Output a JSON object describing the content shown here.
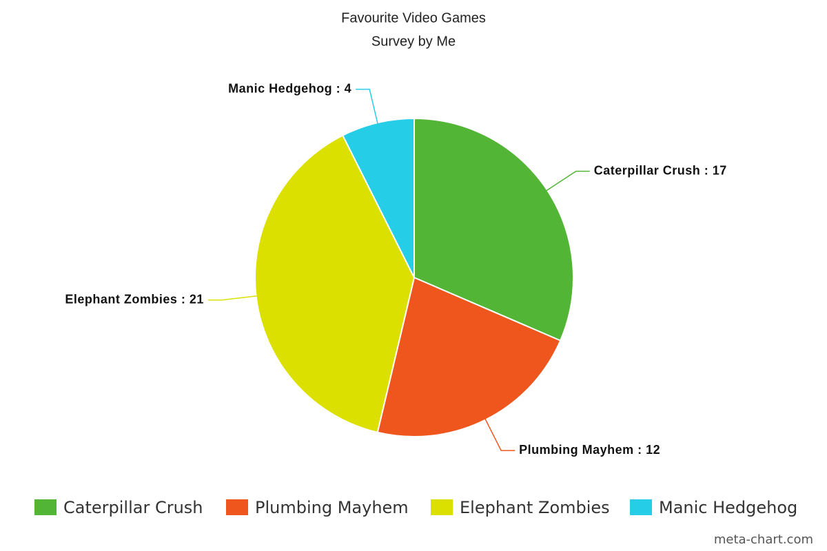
{
  "chart_data": {
    "type": "pie",
    "title": "Favourite Video Games",
    "subtitle": "Survey by Me",
    "categories": [
      "Caterpillar Crush",
      "Plumbing Mayhem",
      "Elephant Zombies",
      "Manic Hedgehog"
    ],
    "values": [
      17,
      12,
      21,
      4
    ],
    "value_labels": [
      "Caterpillar Crush : 17",
      "Plumbing Mayhem : 12",
      "Elephant Zombies : 21",
      "Manic Hedgehog : 4"
    ],
    "colors": [
      "#52b535",
      "#ee561d",
      "#dbe000",
      "#25cde6"
    ],
    "legend": "bottom"
  },
  "credit": "meta-chart.com"
}
